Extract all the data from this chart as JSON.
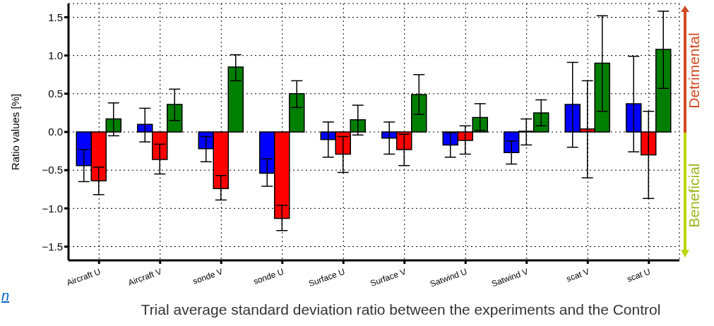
{
  "chart_data": {
    "type": "bar",
    "title": "Trial average standard deviation ratio between the experiments and the Control",
    "ylabel": "Ratio values [%]",
    "categories": [
      "Aircraft U",
      "Aircraft V",
      "sonde V",
      "sonde U",
      "Surface U",
      "Surface V",
      "Satwind U",
      "Satwind V",
      "scat V",
      "scat U"
    ],
    "series": [
      {
        "color": "#0000ff",
        "values": [
          -0.44,
          0.1,
          -0.22,
          -0.54,
          -0.1,
          -0.08,
          -0.17,
          -0.27,
          0.36,
          0.37
        ],
        "errors": [
          [
            -0.65,
            -0.23
          ],
          [
            -0.13,
            0.31
          ],
          [
            -0.39,
            -0.06
          ],
          [
            -0.71,
            -0.35
          ],
          [
            -0.33,
            0.13
          ],
          [
            -0.29,
            0.13
          ],
          [
            -0.33,
            -0.01
          ],
          [
            -0.42,
            -0.12
          ],
          [
            -0.2,
            0.91
          ],
          [
            -0.26,
            0.99
          ]
        ]
      },
      {
        "color": "#ff0000",
        "values": [
          -0.64,
          -0.36,
          -0.74,
          -1.13,
          -0.29,
          -0.23,
          -0.11,
          0.01,
          0.04,
          -0.3
        ],
        "errors": [
          [
            -0.82,
            -0.46
          ],
          [
            -0.55,
            -0.16
          ],
          [
            -0.89,
            -0.57
          ],
          [
            -1.29,
            -0.96
          ],
          [
            -0.53,
            -0.06
          ],
          [
            -0.44,
            -0.03
          ],
          [
            -0.29,
            0.08
          ],
          [
            -0.17,
            0.17
          ],
          [
            -0.6,
            0.67
          ],
          [
            -0.87,
            0.27
          ]
        ]
      },
      {
        "color": "#007f00",
        "values": [
          0.17,
          0.36,
          0.85,
          0.5,
          0.16,
          0.49,
          0.19,
          0.25,
          0.9,
          1.08
        ],
        "errors": [
          [
            -0.05,
            0.38
          ],
          [
            0.15,
            0.56
          ],
          [
            0.67,
            1.01
          ],
          [
            0.32,
            0.67
          ],
          [
            -0.04,
            0.35
          ],
          [
            0.23,
            0.75
          ],
          [
            0.02,
            0.37
          ],
          [
            0.08,
            0.42
          ],
          [
            0.27,
            1.52
          ],
          [
            0.57,
            1.58
          ]
        ]
      }
    ],
    "ylim": [
      -1.68,
      1.68
    ],
    "yticks": [
      {
        "value": -1.5,
        "label": "−1.5"
      },
      {
        "value": -1,
        "label": "−1.0"
      },
      {
        "value": -0.5,
        "label": "−0.5"
      },
      {
        "value": 0,
        "label": "0.0"
      },
      {
        "value": 0.5,
        "label": "0.5"
      },
      {
        "value": 1,
        "label": "1.0"
      },
      1.5
    ],
    "grid": true,
    "annotations": [
      "Detrimental",
      "Beneficial",
      "n"
    ]
  }
}
